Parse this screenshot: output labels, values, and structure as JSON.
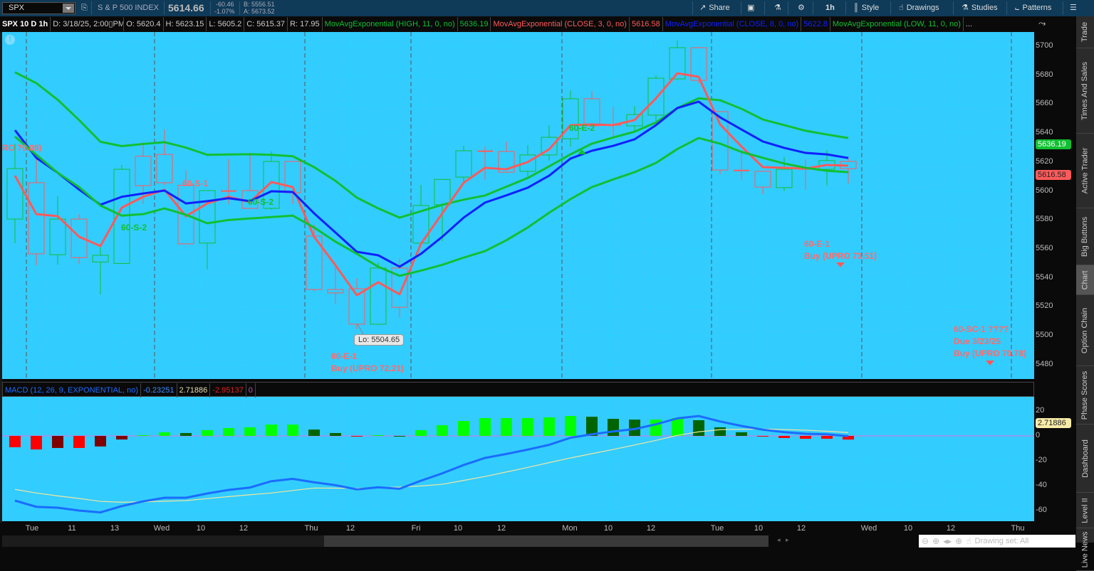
{
  "toolbar": {
    "symbol": "SPX",
    "description": "S & P 500 INDEX",
    "last": "5614.66",
    "change": "-60.46",
    "change_pct": "-1.07%",
    "bid": "B: 5556.51",
    "ask": "A: 5673.52",
    "share": "Share",
    "timeframe": "1h",
    "style": "Style",
    "drawings": "Drawings",
    "studies": "Studies",
    "patterns": "Patterns"
  },
  "info": {
    "title": "SPX 10 D 1h",
    "date": "D: 3/18/25, 2:00▯PM",
    "open": "O: 5620.4",
    "high": "H: 5623.15",
    "low": "L: 5605.2",
    "close": "C: 5615.37",
    "range": "R: 17.95",
    "studies": [
      {
        "label": "MovAvgExponential (HIGH, 11, 0, no)",
        "value": "5636.19",
        "color": "#10c030"
      },
      {
        "label": "MovAvgExponential (CLOSE, 3, 0, no)",
        "value": "5616.58",
        "color": "#ff5a5a"
      },
      {
        "label": "MovAvgExponential (CLOSE, 8, 0, no)",
        "value": "5622.8",
        "color": "#1020ff"
      },
      {
        "label": "MovAvgExponential (LOW, 11, 0, no)",
        "value": "",
        "color": "#10c030"
      }
    ],
    "more": "..."
  },
  "macd_header": {
    "label": "MACD (12, 26, 9, EXPONENTIAL, no)",
    "value": "-0.23251",
    "avg": "2.71886",
    "diff": "-2.95137",
    "zero": "0"
  },
  "annotations": {
    "cut_left": "RO 79.08)",
    "s2a": "60-S-2",
    "s1": "60-S-1",
    "s2b": "60-S-2",
    "lo": "Lo: 5504.65",
    "e1a_1": "60-E-1",
    "e1a_2": "Buy (UPRO 72.21)",
    "e2": "60-E-2",
    "e1b_1": "60-E-1",
    "e1b_2": "Buy (UPRO 73.51)",
    "sc_1": "60-SC-1 ????",
    "sc_2": "Due 3/23/25",
    "sc_3": "Buy (UPRO 70.78)"
  },
  "price_tags": {
    "ema_high": "5636.19",
    "ema_close3": "5616.58",
    "macd_avg": "2.71886"
  },
  "right_tabs": [
    "Trade",
    "Times And Sales",
    "Active Trader",
    "Big Buttons",
    "Chart",
    "Option Chain",
    "Phase Scores",
    "Dashboard",
    "Level II",
    "Live News"
  ],
  "active_tab": "Chart",
  "status": {
    "drawing_set": "Drawing set: All"
  },
  "colors": {
    "background": "#33ccff",
    "up": "#10c030",
    "down": "#ff5a5a",
    "ema8": "#1020ff",
    "macd": "#1a6cff",
    "signal": "#f0e6a0"
  },
  "chart_data": [
    {
      "type": "candlestick",
      "title": "SPX 10 D 1h",
      "y_ticks": [
        5700,
        5680,
        5660,
        5640,
        5620,
        5600,
        5580,
        5560,
        5540,
        5520,
        5500,
        5480
      ],
      "ylim": [
        5470,
        5712
      ],
      "x_ticks": [
        "Tue",
        "11",
        "13",
        "Wed",
        "10",
        "12",
        "Thu",
        "12",
        "Fri",
        "10",
        "12",
        "Mon",
        "10",
        "12",
        "Tue",
        "10",
        "12",
        "Wed",
        "10",
        "12",
        "Thu"
      ],
      "grid": true,
      "ohlc": [
        [
          5580.6,
          5632.7,
          5564,
          5615.5
        ],
        [
          5605.7,
          5622.4,
          5548.7,
          5556.6
        ],
        [
          5556,
          5596.4,
          5549,
          5580.6
        ],
        [
          5580.6,
          5584,
          5549.7,
          5554
        ],
        [
          5551,
          5561,
          5528.6,
          5555.6
        ],
        [
          5550,
          5618,
          5549.5,
          5615
        ],
        [
          5624,
          5633.7,
          5591,
          5603.7
        ],
        [
          5625.3,
          5642.5,
          5604,
          5605.7
        ],
        [
          5604,
          5614.5,
          5563.5,
          5563.5
        ],
        [
          5564,
          5600.3,
          5545.8,
          5600.3
        ],
        [
          5600,
          5621.9,
          5591,
          5599.8
        ],
        [
          5600.3,
          5626.3,
          5588,
          5588
        ],
        [
          5588,
          5627.3,
          5587,
          5620.4
        ],
        [
          5620.4,
          5620.4,
          5591,
          5598.8
        ],
        [
          5568.9,
          5576.7,
          5531,
          5532
        ],
        [
          5532,
          5548.2,
          5522,
          5529.6
        ],
        [
          5532.5,
          5539.9,
          5504.65,
          5508
        ],
        [
          5508,
          5550.7,
          5507.5,
          5546.8
        ],
        [
          5546.8,
          5553.6,
          5512.4,
          5519.7
        ],
        [
          5564,
          5604.2,
          5563.5,
          5590
        ],
        [
          5590.5,
          5608,
          5565.4,
          5608
        ],
        [
          5609.6,
          5631.2,
          5606,
          5627.8
        ],
        [
          5627.5,
          5630.7,
          5607.7,
          5627
        ],
        [
          5627.3,
          5634,
          5612.6,
          5613
        ],
        [
          5613.6,
          5631.7,
          5610,
          5624.9
        ],
        [
          5624.9,
          5645.5,
          5621,
          5637.1
        ],
        [
          5636.1,
          5669.5,
          5630.7,
          5663.7
        ],
        [
          5663.7,
          5669,
          5645,
          5645
        ],
        [
          5645.7,
          5658,
          5637,
          5645.3
        ],
        [
          5645,
          5658.7,
          5642,
          5652.8
        ],
        [
          5652.4,
          5679.9,
          5648.4,
          5677.9
        ],
        [
          5677.4,
          5704,
          5677,
          5699
        ],
        [
          5699,
          5699.5,
          5674.5,
          5676.4
        ],
        [
          5654.8,
          5654.8,
          5611.6,
          5614.5
        ],
        [
          5614.2,
          5627.3,
          5608,
          5613.9
        ],
        [
          5613.6,
          5613.6,
          5597.8,
          5602.7
        ],
        [
          5602.3,
          5623.4,
          5600,
          5615
        ],
        [
          5615.2,
          5621.9,
          5600.8,
          5614.9
        ],
        [
          5615,
          5628.3,
          5603.7,
          5621
        ],
        [
          5620.4,
          5623.15,
          5605.2,
          5615.37
        ]
      ],
      "series": [
        {
          "name": "MovAvgExponential (HIGH, 11, 0, no)",
          "color": "#10c030",
          "values": [
            5682,
            5674.5,
            5663,
            5649,
            5634,
            5631,
            5632.5,
            5633.7,
            5630,
            5625,
            5625.2,
            5625.4,
            5625,
            5624,
            5616.5,
            5607,
            5595.4,
            5588,
            5581.6,
            5586,
            5590.5,
            5594,
            5596.9,
            5603,
            5609,
            5617,
            5625.3,
            5632.7,
            5637,
            5641,
            5647.4,
            5657.3,
            5664,
            5662.7,
            5656.8,
            5649.4,
            5645.5,
            5641.6,
            5639,
            5636.6
          ]
        },
        {
          "name": "MovAvgExponential (CLOSE, 3, 0, no)",
          "color": "#ff5a5a",
          "values": [
            5610.6,
            5584,
            5582.6,
            5568.4,
            5562,
            5588.5,
            5596,
            5600.8,
            5582.6,
            5591.4,
            5596,
            5592.4,
            5606.2,
            5602.7,
            5568.4,
            5548.7,
            5528,
            5537,
            5528.6,
            5563.5,
            5584.6,
            5605.7,
            5616,
            5615,
            5620,
            5628.8,
            5645.5,
            5646,
            5645.5,
            5649,
            5664,
            5681.3,
            5678.9,
            5646,
            5630.7,
            5616.5,
            5616,
            5615.5,
            5618,
            5617.5
          ]
        },
        {
          "name": "MovAvgExponential (CLOSE, 8, 0, no)",
          "color": "#1020ff",
          "values": [
            5642,
            5622.9,
            5612.6,
            5601,
            5590.5,
            5596,
            5598.3,
            5600.3,
            5591.4,
            5593,
            5595,
            5593,
            5599.8,
            5599.3,
            5584.6,
            5571.3,
            5558,
            5555.6,
            5547.7,
            5556.6,
            5568.4,
            5581.6,
            5592,
            5597,
            5602.3,
            5610.6,
            5622.4,
            5627.8,
            5631.2,
            5635.7,
            5645.5,
            5657.3,
            5661.7,
            5650.9,
            5642.5,
            5634.2,
            5629.8,
            5626.3,
            5625.3,
            5622.8
          ]
        },
        {
          "name": "MovAvgExponential (LOW, 11, 0, no)",
          "color": "#10c030",
          "values": [
            5637.6,
            5625,
            5612.6,
            5602.7,
            5590,
            5583,
            5584,
            5588,
            5583.6,
            5577.7,
            5580,
            5581,
            5582,
            5583,
            5574.8,
            5565,
            5556.6,
            5547.7,
            5541.4,
            5545,
            5549,
            5554,
            5558.5,
            5566,
            5574.8,
            5585,
            5594.4,
            5602.7,
            5608,
            5613,
            5619.4,
            5629,
            5636.6,
            5632.7,
            5627,
            5622.9,
            5619,
            5616,
            5614,
            5613
          ]
        }
      ]
    },
    {
      "type": "bar+line",
      "title": "MACD (12, 26, 9, EXPONENTIAL, no)",
      "y_ticks": [
        20,
        0,
        -20,
        -40,
        -60
      ],
      "ylim": [
        -65,
        25
      ],
      "histogram": [
        -9.1,
        -10.9,
        -9.7,
        -9.7,
        -8.5,
        -2.9,
        0.6,
        2.9,
        2.3,
        4.6,
        6.3,
        6.9,
        9.1,
        9.1,
        5.1,
        2.3,
        -0.4,
        0.6,
        0,
        4.6,
        8.6,
        12,
        14.3,
        14.3,
        14.3,
        14.9,
        16,
        15.4,
        13.7,
        13.1,
        13.1,
        14.3,
        12.6,
        6.9,
        2.9,
        -0.4,
        -1.7,
        -2.3,
        -2.3,
        -2.95137
      ],
      "histogram_colors": {
        "up_rising": "#00ff00",
        "up_falling": "#006400",
        "down_falling": "#ff0000",
        "down_rising": "#800000"
      },
      "series": [
        {
          "name": "Value",
          "color": "#1a6cff",
          "values": [
            -52,
            -57,
            -57.7,
            -60,
            -61.5,
            -56.4,
            -52.6,
            -49.7,
            -49.7,
            -46.3,
            -43.4,
            -41.5,
            -36.4,
            -34.5,
            -37.3,
            -39.6,
            -43,
            -41.3,
            -42.5,
            -36,
            -30.1,
            -23.4,
            -17.7,
            -14.5,
            -11,
            -7.2,
            -1.5,
            1.3,
            3.6,
            5.5,
            9.3,
            14.1,
            16,
            11.6,
            8,
            5,
            3,
            1.7,
            1.3,
            -0.23251
          ]
        },
        {
          "name": "Avg",
          "color": "#f0e6a0",
          "values": [
            -43,
            -45.9,
            -48.2,
            -50.3,
            -52.6,
            -53.3,
            -53,
            -52.5,
            -52,
            -50.4,
            -48.8,
            -47.3,
            -45.9,
            -43.9,
            -41.9,
            -42,
            -42.1,
            -41.6,
            -41.1,
            -40.2,
            -38.9,
            -35.8,
            -32.6,
            -29,
            -25.3,
            -21.5,
            -17.7,
            -14.3,
            -10.9,
            -7.3,
            -3.6,
            0.4,
            3.3,
            5,
            5.3,
            5.5,
            5.1,
            4.6,
            3.7,
            2.71886
          ]
        }
      ]
    }
  ]
}
